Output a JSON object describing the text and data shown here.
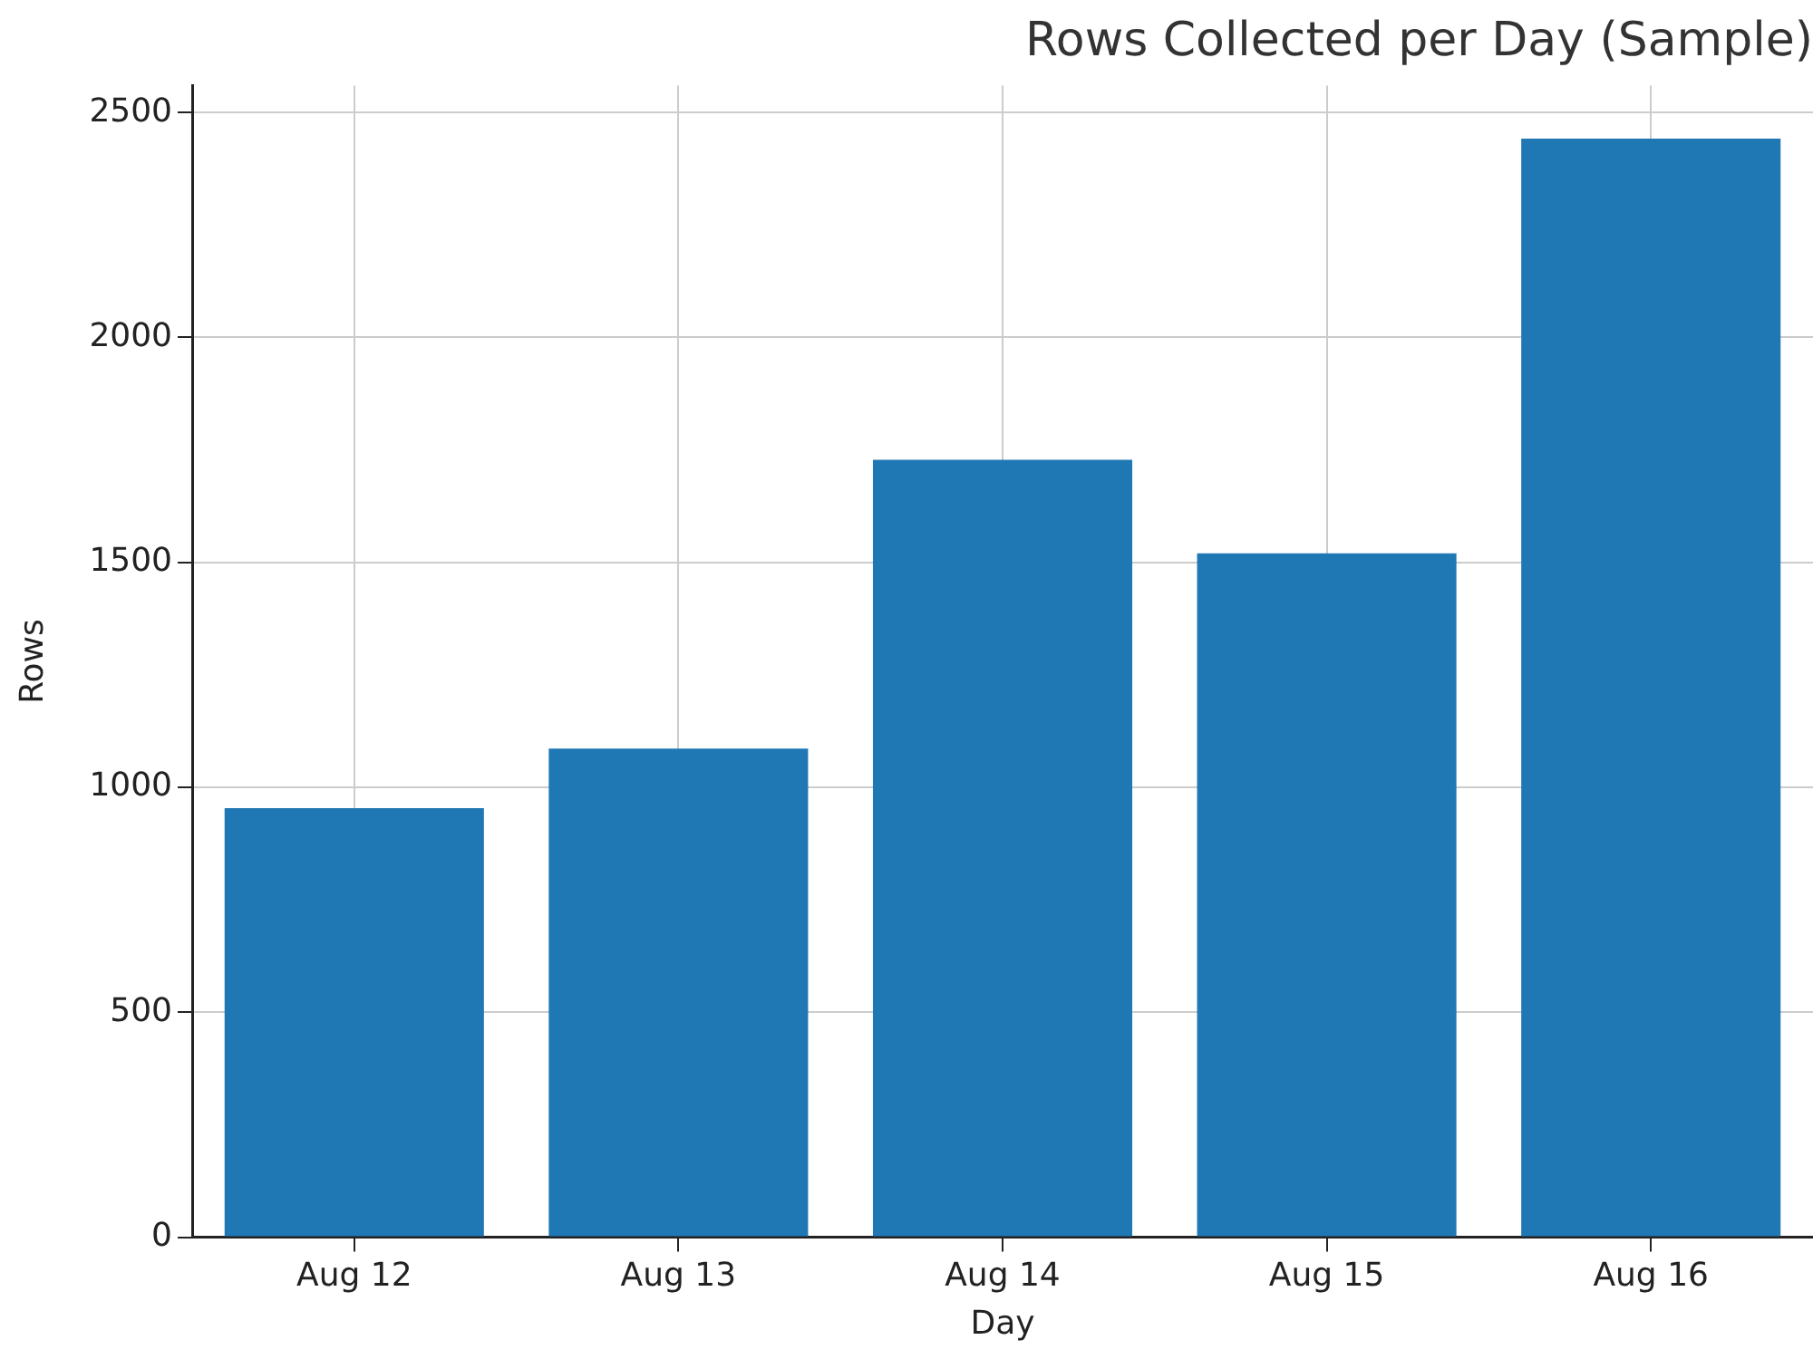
{
  "chart_data": {
    "type": "bar",
    "title": "Rows Collected per Day (Sample)",
    "xlabel": "Day",
    "ylabel": "Rows",
    "categories": [
      "Aug 12",
      "Aug 13",
      "Aug 14",
      "Aug 15",
      "Aug 16"
    ],
    "values": [
      954,
      1086,
      1728,
      1520,
      2442
    ],
    "color": "#1f77b4",
    "ylim": [
      0,
      2560
    ],
    "yticks": [
      0,
      500,
      1000,
      1500,
      2000,
      2500
    ],
    "grid": true,
    "legend": false
  }
}
